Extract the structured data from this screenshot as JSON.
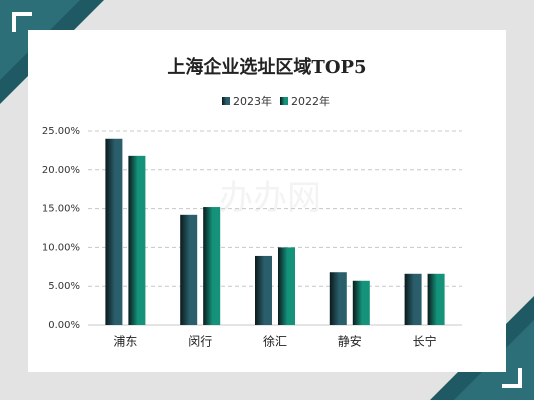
{
  "chart_data": {
    "type": "bar",
    "title": "上海企业选址区域TOP5",
    "watermark": "办办网",
    "categories": [
      "浦东",
      "闵行",
      "徐汇",
      "静安",
      "长宁"
    ],
    "series": [
      {
        "name": "2023年",
        "color": "#2a5e6a",
        "values": [
          24.0,
          14.2,
          8.9,
          6.8,
          6.6
        ]
      },
      {
        "name": "2022年",
        "color": "#14927a",
        "values": [
          21.8,
          15.2,
          10.0,
          5.7,
          6.6
        ]
      }
    ],
    "ylim": [
      0,
      25
    ],
    "yticks": [
      {
        "value": 0,
        "label": "0.00%"
      },
      {
        "value": 5,
        "label": "5.00%"
      },
      {
        "value": 10,
        "label": "10.00%"
      },
      {
        "value": 15,
        "label": "15.00%"
      },
      {
        "value": 20,
        "label": "20.00%"
      },
      {
        "value": 25,
        "label": "25.00%"
      }
    ],
    "grid": true
  }
}
